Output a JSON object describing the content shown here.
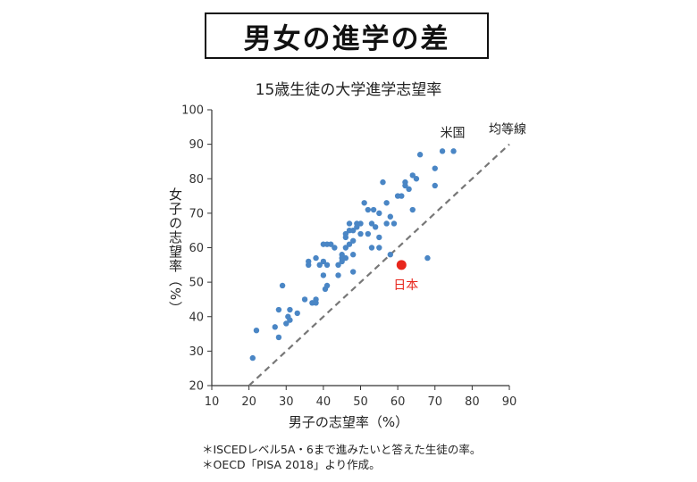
{
  "header": {
    "title": "男女の進学の差",
    "subtitle": "15歳生徒の大学進学志望率"
  },
  "notes": [
    "＊ISCEDレベル5A・6まで進みたいと答えた生徒の率。",
    "＊OECD「PISA 2018」より作成。"
  ],
  "chart_data": {
    "type": "scatter",
    "title": "15歳生徒の大学進学志望率",
    "xlabel": "男子の志望率（%）",
    "ylabel": "女子の志望率（%）",
    "xlim": [
      10,
      90
    ],
    "ylim": [
      20,
      100
    ],
    "xticks": [
      10,
      20,
      30,
      40,
      50,
      60,
      70,
      80,
      90
    ],
    "yticks": [
      20,
      30,
      40,
      50,
      60,
      70,
      80,
      90,
      100
    ],
    "grid": false,
    "colors": {
      "points": "#4a86c5",
      "highlight": "#e8261c",
      "diagonal": "#777777",
      "axis": "#333333"
    },
    "reference_line": {
      "label": "均等線",
      "from": [
        20,
        20
      ],
      "to": [
        90,
        90
      ]
    },
    "points": [
      [
        21,
        28
      ],
      [
        22,
        36
      ],
      [
        27,
        37
      ],
      [
        28,
        34
      ],
      [
        28,
        42
      ],
      [
        29,
        49
      ],
      [
        30,
        38
      ],
      [
        30.5,
        40
      ],
      [
        31,
        39
      ],
      [
        31,
        42
      ],
      [
        33,
        41
      ],
      [
        35,
        45
      ],
      [
        36,
        55
      ],
      [
        36,
        56
      ],
      [
        37,
        44
      ],
      [
        38,
        45
      ],
      [
        38,
        44
      ],
      [
        38,
        57
      ],
      [
        39,
        55
      ],
      [
        40,
        52
      ],
      [
        40,
        56
      ],
      [
        40,
        61
      ],
      [
        40.5,
        48
      ],
      [
        41,
        49
      ],
      [
        41,
        61
      ],
      [
        41,
        55
      ],
      [
        42,
        61
      ],
      [
        43,
        60
      ],
      [
        44,
        52
      ],
      [
        44,
        55
      ],
      [
        45,
        56
      ],
      [
        45,
        57
      ],
      [
        45,
        58
      ],
      [
        46,
        57
      ],
      [
        46,
        60
      ],
      [
        46,
        63
      ],
      [
        46,
        64
      ],
      [
        47,
        61
      ],
      [
        47,
        65
      ],
      [
        47,
        67
      ],
      [
        48,
        53
      ],
      [
        48,
        58
      ],
      [
        48,
        62
      ],
      [
        48,
        65
      ],
      [
        49,
        66
      ],
      [
        49,
        67
      ],
      [
        50,
        64
      ],
      [
        50,
        67
      ],
      [
        51,
        73
      ],
      [
        52,
        64
      ],
      [
        52,
        71
      ],
      [
        53,
        60
      ],
      [
        53,
        67
      ],
      [
        53.5,
        71
      ],
      [
        54,
        66
      ],
      [
        55,
        60
      ],
      [
        55,
        63
      ],
      [
        55,
        70
      ],
      [
        56,
        79
      ],
      [
        57,
        67
      ],
      [
        57,
        73
      ],
      [
        58,
        58
      ],
      [
        58,
        69
      ],
      [
        59,
        67
      ],
      [
        60,
        75
      ],
      [
        61,
        75
      ],
      [
        62,
        78
      ],
      [
        62,
        79
      ],
      [
        63,
        77
      ],
      [
        64,
        81
      ],
      [
        64,
        71
      ],
      [
        65,
        80
      ],
      [
        66,
        87
      ],
      [
        70,
        78
      ],
      [
        70,
        83
      ],
      [
        72,
        88
      ],
      [
        75,
        88
      ],
      [
        68,
        57
      ]
    ],
    "highlights": [
      {
        "label": "日本",
        "x": 61,
        "y": 55
      },
      {
        "label": "米国",
        "x": 75,
        "y": 88
      }
    ]
  }
}
